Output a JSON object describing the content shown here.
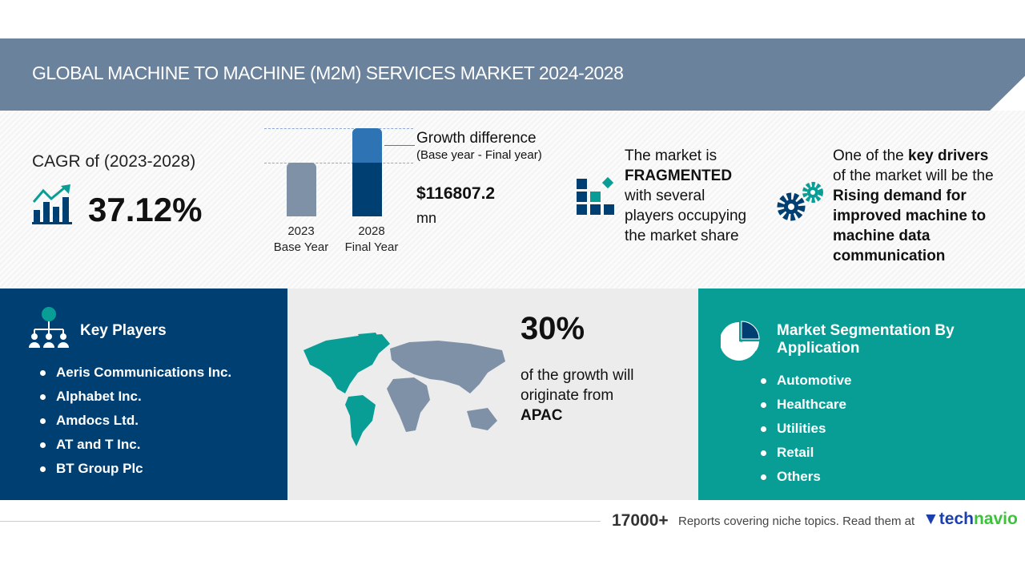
{
  "header": {
    "title": "GLOBAL MACHINE TO MACHINE (M2M) SERVICES MARKET 2024-2028"
  },
  "cagr": {
    "label": "CAGR of (2023-2028)",
    "value": "37.12%",
    "icon": "growth-chart-icon"
  },
  "growth_chart": {
    "base_year": "2023",
    "base_label": "Base Year",
    "final_year": "2028",
    "final_label": "Final Year",
    "growth_label": "Growth difference",
    "growth_sub": "(Base year - Final year)",
    "value": "$116807.2",
    "unit": "mn",
    "colors": {
      "base": "#7f91a6",
      "final": "#003f72",
      "growth": "#2e74b5"
    }
  },
  "fragmented": {
    "icon": "blocks-icon",
    "line1": "The market is",
    "strong": "FRAGMENTED",
    "line2": "with several",
    "line3": "players occupying",
    "line4": "the market share"
  },
  "drivers": {
    "icon": "gears-icon",
    "pre": "One of the ",
    "strong1": "key drivers",
    "line2": "of the market will be the",
    "strong_lines": [
      "Rising demand for",
      "improved machine to",
      "machine data",
      "communication"
    ]
  },
  "key_players": {
    "title": "Key Players",
    "icon": "network-people-icon",
    "items": [
      "Aeris Communications Inc.",
      "Alphabet Inc.",
      "Amdocs Ltd.",
      "AT and T Inc.",
      "BT Group Plc"
    ]
  },
  "region": {
    "percent": "30%",
    "line1": "of the growth will",
    "line2": "originate from",
    "region": "APAC",
    "icon": "world-map-icon"
  },
  "segmentation": {
    "title_line1": "Market Segmentation By",
    "title_line2": "Application",
    "icon": "pie-chart-icon",
    "items": [
      "Automotive",
      "Healthcare",
      "Utilities",
      "Retail",
      "Others"
    ]
  },
  "footer": {
    "count": "17000+",
    "text": "Reports covering niche topics. Read them at",
    "brand_a": "tech",
    "brand_b": "navio"
  },
  "colors": {
    "header": "#6b829c",
    "navy": "#003f72",
    "teal": "#089e96",
    "gray": "#ececec"
  }
}
